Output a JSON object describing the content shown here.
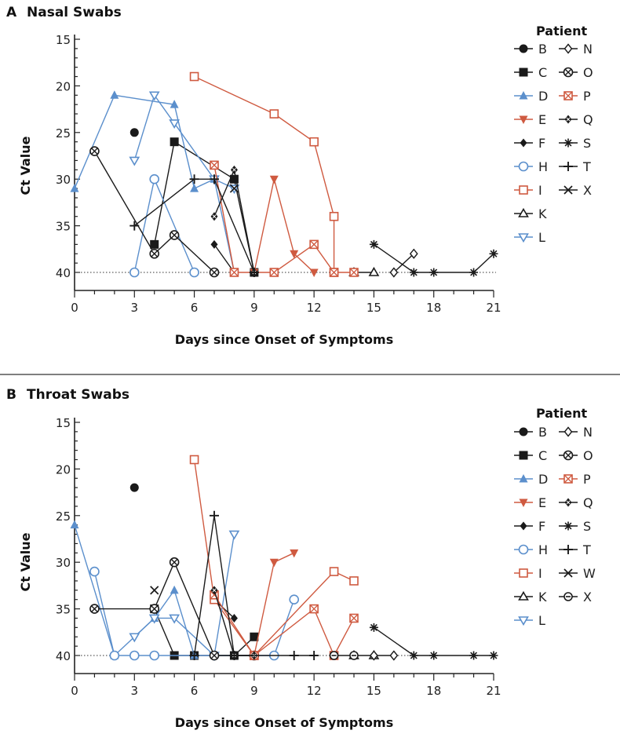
{
  "colors": {
    "black": "#1a1a1a",
    "blue": "#5b8fcc",
    "red": "#cf5a40",
    "axis": "#222222",
    "divider": "#555555"
  },
  "legend_title": "Patient",
  "chart_data": [
    {
      "type": "line",
      "panel": "A",
      "title": "Nasal Swabs",
      "xlabel": "Days since Onset of Symptoms",
      "ylabel": "Ct Value",
      "xlim": [
        0,
        21
      ],
      "ylim": [
        15,
        40
      ],
      "y_reversed": true,
      "x_ticks": [
        0,
        3,
        6,
        9,
        12,
        15,
        18,
        21
      ],
      "y_ticks": [
        15,
        20,
        25,
        30,
        35,
        40
      ],
      "detection_limit": 40,
      "legend_placement": "right",
      "series": [
        {
          "name": "B",
          "marker": "circle-filled",
          "color": "black",
          "points": [
            [
              3,
              25
            ]
          ]
        },
        {
          "name": "C",
          "marker": "square-filled",
          "color": "black",
          "points": [
            [
              4,
              37
            ],
            [
              5,
              26
            ],
            [
              8,
              30
            ],
            [
              9,
              40
            ]
          ]
        },
        {
          "name": "D",
          "marker": "triangle-up",
          "color": "blue",
          "points": [
            [
              0,
              31
            ],
            [
              2,
              21
            ],
            [
              5,
              22
            ],
            [
              6,
              31
            ],
            [
              7,
              30
            ],
            [
              8,
              40
            ]
          ]
        },
        {
          "name": "E",
          "marker": "triangle-down",
          "color": "red",
          "points": [
            [
              9,
              40
            ],
            [
              10,
              30
            ],
            [
              11,
              38
            ],
            [
              12,
              40
            ]
          ]
        },
        {
          "name": "F",
          "marker": "diamond-filled",
          "color": "black",
          "points": [
            [
              7,
              37
            ],
            [
              8,
              40
            ]
          ]
        },
        {
          "name": "H",
          "marker": "circle-open",
          "color": "blue",
          "points": [
            [
              3,
              40
            ],
            [
              4,
              30
            ],
            [
              6,
              40
            ]
          ]
        },
        {
          "name": "I",
          "marker": "square-open",
          "color": "red",
          "points": [
            [
              6,
              19
            ],
            [
              10,
              23
            ],
            [
              12,
              26
            ],
            [
              13,
              34
            ],
            [
              13,
              40
            ]
          ]
        },
        {
          "name": "K",
          "marker": "triangle-open",
          "color": "black",
          "points": [
            [
              14,
              40
            ],
            [
              15,
              40
            ]
          ]
        },
        {
          "name": "L",
          "marker": "triangle-down-open",
          "color": "blue",
          "points": [
            [
              3,
              28
            ],
            [
              4,
              21
            ],
            [
              5,
              24
            ],
            [
              7,
              30
            ],
            [
              8,
              31
            ]
          ]
        },
        {
          "name": "N",
          "marker": "diamond-open",
          "color": "black",
          "points": [
            [
              16,
              40
            ],
            [
              17,
              38
            ]
          ]
        },
        {
          "name": "O",
          "marker": "circle-x",
          "color": "black",
          "points": [
            [
              1,
              27
            ],
            [
              4,
              38
            ],
            [
              5,
              36
            ],
            [
              7,
              40
            ]
          ]
        },
        {
          "name": "P",
          "marker": "square-x",
          "color": "red",
          "points": [
            [
              7,
              28.5
            ],
            [
              8,
              40
            ],
            [
              10,
              40
            ],
            [
              12,
              37
            ],
            [
              13,
              40
            ],
            [
              14,
              40
            ]
          ]
        },
        {
          "name": "Q",
          "marker": "diamond-x",
          "color": "black",
          "points": [
            [
              7,
              34
            ],
            [
              8,
              29
            ],
            [
              9,
              40
            ]
          ]
        },
        {
          "name": "S",
          "marker": "asterisk",
          "color": "black",
          "points": [
            [
              15,
              37
            ],
            [
              17,
              40
            ],
            [
              18,
              40
            ],
            [
              20,
              40
            ],
            [
              21,
              38
            ]
          ]
        },
        {
          "name": "T",
          "marker": "plus",
          "color": "black",
          "points": [
            [
              3,
              35
            ],
            [
              6,
              30
            ],
            [
              7,
              30
            ],
            [
              9,
              40
            ]
          ]
        },
        {
          "name": "X",
          "marker": "cross",
          "color": "black",
          "points": [
            [
              8,
              31
            ]
          ]
        }
      ]
    },
    {
      "type": "line",
      "panel": "B",
      "title": "Throat Swabs",
      "xlabel": "Days since Onset of Symptoms",
      "ylabel": "Ct Value",
      "xlim": [
        0,
        21
      ],
      "ylim": [
        15,
        40
      ],
      "y_reversed": true,
      "x_ticks": [
        0,
        3,
        6,
        9,
        12,
        15,
        18,
        21
      ],
      "y_ticks": [
        15,
        20,
        25,
        30,
        35,
        40
      ],
      "detection_limit": 40,
      "legend_placement": "right",
      "series": [
        {
          "name": "B",
          "marker": "circle-filled",
          "color": "black",
          "points": [
            [
              3,
              22
            ]
          ]
        },
        {
          "name": "C",
          "marker": "square-filled",
          "color": "black",
          "points": [
            [
              4,
              35
            ],
            [
              5,
              40
            ],
            [
              6,
              40
            ],
            [
              8,
              40
            ],
            [
              9,
              38
            ]
          ]
        },
        {
          "name": "D",
          "marker": "triangle-up",
          "color": "blue",
          "points": [
            [
              0,
              26
            ],
            [
              2,
              40
            ],
            [
              4,
              36
            ],
            [
              5,
              33
            ],
            [
              6,
              40
            ]
          ]
        },
        {
          "name": "E",
          "marker": "triangle-down",
          "color": "red",
          "points": [
            [
              9,
              40
            ],
            [
              10,
              30
            ],
            [
              11,
              29
            ]
          ]
        },
        {
          "name": "F",
          "marker": "diamond-filled",
          "color": "black",
          "points": [
            [
              7,
              34
            ],
            [
              8,
              36
            ]
          ]
        },
        {
          "name": "H",
          "marker": "circle-open",
          "color": "blue",
          "points": [
            [
              1,
              31
            ],
            [
              2,
              40
            ],
            [
              3,
              40
            ],
            [
              4,
              40
            ],
            [
              10,
              40
            ],
            [
              11,
              34
            ]
          ]
        },
        {
          "name": "I",
          "marker": "square-open",
          "color": "red",
          "points": [
            [
              6,
              19
            ],
            [
              7,
              34
            ],
            [
              9,
              40
            ],
            [
              13,
              31
            ],
            [
              14,
              32
            ]
          ]
        },
        {
          "name": "K",
          "marker": "triangle-open",
          "color": "black",
          "points": [
            [
              14,
              40
            ],
            [
              15,
              40
            ]
          ]
        },
        {
          "name": "L",
          "marker": "triangle-down-open",
          "color": "blue",
          "points": [
            [
              3,
              38
            ],
            [
              4,
              36
            ],
            [
              5,
              36
            ],
            [
              7,
              40
            ],
            [
              8,
              27
            ]
          ]
        },
        {
          "name": "N",
          "marker": "diamond-open",
          "color": "black",
          "points": [
            [
              15,
              40
            ],
            [
              16,
              40
            ]
          ]
        },
        {
          "name": "O",
          "marker": "circle-x",
          "color": "black",
          "points": [
            [
              1,
              35
            ],
            [
              4,
              35
            ],
            [
              5,
              30
            ],
            [
              7,
              40
            ],
            [
              9,
              40
            ]
          ]
        },
        {
          "name": "P",
          "marker": "square-x",
          "color": "red",
          "points": [
            [
              7,
              33.5
            ],
            [
              9,
              40
            ],
            [
              12,
              35
            ],
            [
              13,
              40
            ],
            [
              14,
              36
            ]
          ]
        },
        {
          "name": "Q",
          "marker": "diamond-x",
          "color": "black",
          "points": [
            [
              7,
              33
            ],
            [
              8,
              40
            ],
            [
              9,
              40
            ]
          ]
        },
        {
          "name": "S",
          "marker": "asterisk",
          "color": "black",
          "points": [
            [
              15,
              37
            ],
            [
              17,
              40
            ],
            [
              18,
              40
            ],
            [
              20,
              40
            ],
            [
              21,
              40
            ]
          ]
        },
        {
          "name": "T",
          "marker": "plus",
          "color": "black",
          "points": [
            [
              6,
              40
            ],
            [
              7,
              25
            ],
            [
              8,
              40
            ],
            [
              11,
              40
            ],
            [
              12,
              40
            ]
          ]
        },
        {
          "name": "W",
          "marker": "cross",
          "color": "black",
          "points": [
            [
              4,
              33
            ]
          ]
        },
        {
          "name": "X",
          "marker": "circle-dash",
          "color": "black",
          "points": [
            [
              13,
              40
            ],
            [
              14,
              40
            ]
          ]
        }
      ]
    }
  ]
}
